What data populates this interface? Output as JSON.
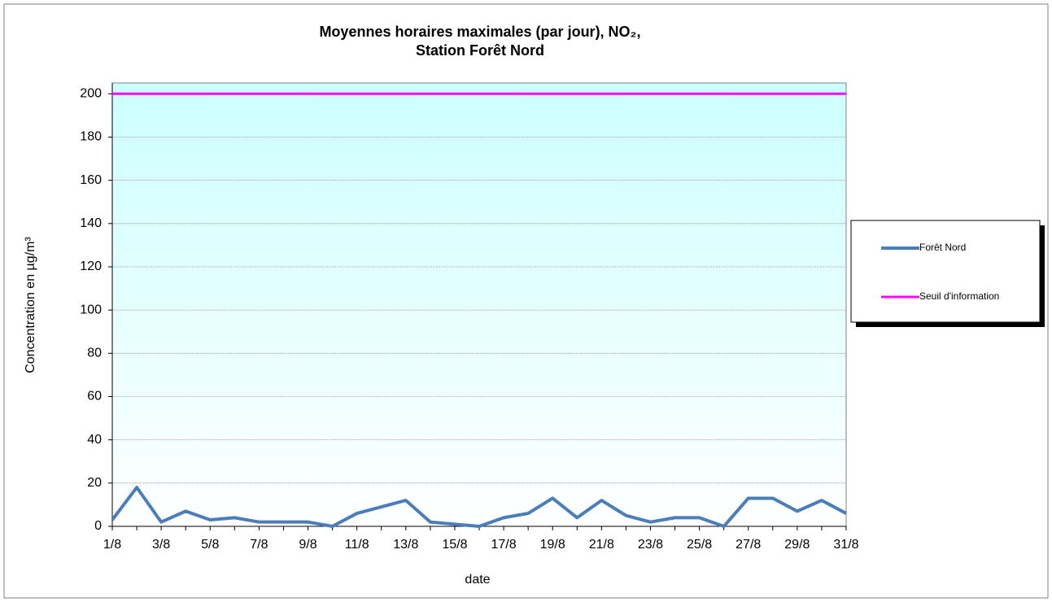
{
  "chart_data": {
    "type": "line",
    "title": [
      "Moyennes horaires maximales (par jour), NO₂,",
      "Station Forêt Nord"
    ],
    "x_label": "date",
    "y_label": "Concentration en µg/m³",
    "categories": [
      "1/8",
      null,
      "3/8",
      null,
      "5/8",
      null,
      "7/8",
      null,
      "9/8",
      null,
      "11/8",
      null,
      "13/8",
      null,
      "15/8",
      null,
      "17/8",
      null,
      "19/8",
      null,
      "21/8",
      null,
      "23/8",
      null,
      "25/8",
      null,
      "27/8",
      null,
      "29/8",
      null,
      "31/8"
    ],
    "series": [
      {
        "name": "Forêt Nord",
        "color": "#4a7ebb",
        "values": [
          3,
          18,
          2,
          7,
          3,
          4,
          2,
          2,
          2,
          0,
          6,
          9,
          12,
          2,
          1,
          0,
          4,
          6,
          13,
          4,
          12,
          5,
          2,
          4,
          4,
          0,
          13,
          13,
          7,
          12,
          6
        ]
      },
      {
        "name": "Seuil d'information",
        "color": "#ff00ff",
        "values": [
          200,
          200,
          200,
          200,
          200,
          200,
          200,
          200,
          200,
          200,
          200,
          200,
          200,
          200,
          200,
          200,
          200,
          200,
          200,
          200,
          200,
          200,
          200,
          200,
          200,
          200,
          200,
          200,
          200,
          200,
          200
        ]
      }
    ],
    "ylim": [
      0,
      205
    ],
    "yticks": [
      0,
      20,
      40,
      60,
      80,
      100,
      120,
      140,
      160,
      180,
      200
    ],
    "grid": true,
    "legend": "right"
  }
}
